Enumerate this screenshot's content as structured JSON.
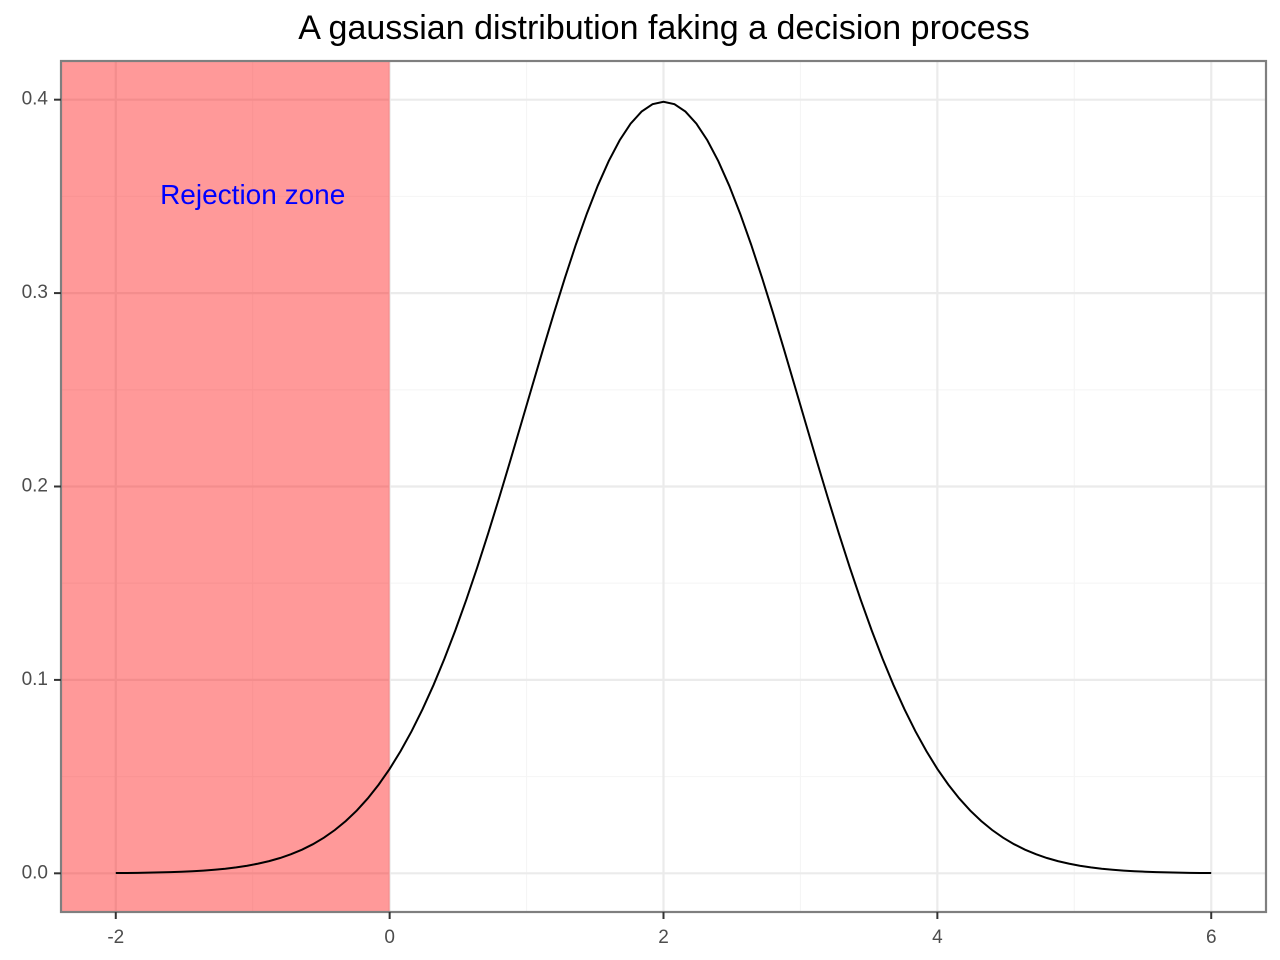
{
  "chart_data": {
    "type": "line",
    "title": "A gaussian distribution faking a decision process",
    "xlabel": "",
    "ylabel": "",
    "xlim": [
      -2.4,
      6.4
    ],
    "ylim": [
      -0.02,
      0.42
    ],
    "x_ticks": [
      -2,
      0,
      2,
      4,
      6
    ],
    "x_tick_labels": [
      "-2",
      "0",
      "2",
      "4",
      "6"
    ],
    "y_ticks": [
      0.0,
      0.1,
      0.2,
      0.3,
      0.4
    ],
    "y_tick_labels": [
      "0.0",
      "0.1",
      "0.2",
      "0.3",
      "0.4"
    ],
    "grid": true,
    "legend": "none",
    "curve": {
      "distribution": "normal",
      "mean": 2,
      "sd": 1,
      "x_start": -2,
      "x_end": 6,
      "samples": 101,
      "color": "#000000"
    },
    "shaded_region": {
      "x_start": -2.4,
      "x_end": 0,
      "color": "#ff0000",
      "opacity": 0.4
    },
    "annotations": [
      {
        "text": "Rejection zone",
        "x": -1,
        "y": 0.35,
        "color": "#0000ff"
      }
    ]
  }
}
